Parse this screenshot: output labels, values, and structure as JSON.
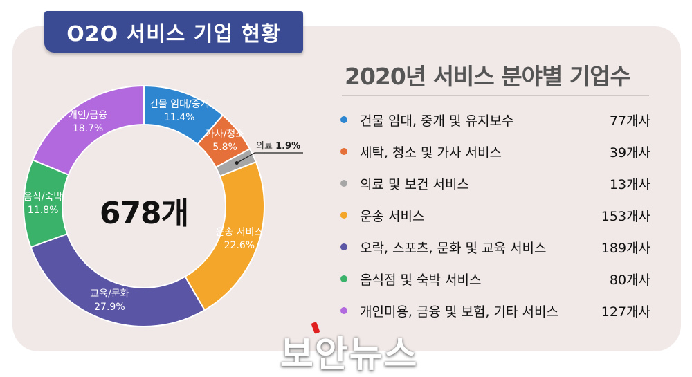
{
  "banner": {
    "title": "O2O 서비스 기업 현황"
  },
  "total": {
    "label": "678개"
  },
  "chart_data": {
    "type": "pie",
    "title": "2020년 서비스 분야별 기업수",
    "donut": true,
    "center_label": "678개",
    "slices": [
      {
        "short": "건물 임대/중개",
        "pct_label": "11.4%",
        "value": 77,
        "color": "#2e86d0",
        "name": "건물 임대, 중개 및 유지보수",
        "count_label": "77개사"
      },
      {
        "short": "가사/청소",
        "pct_label": "5.8%",
        "value": 39,
        "color": "#e6703a",
        "name": "세탁, 청소 및 가사 서비스",
        "count_label": "39개사"
      },
      {
        "short": "의료",
        "pct_label": "1.9%",
        "value": 13,
        "color": "#a6a6a6",
        "name": "의료 및 보건 서비스",
        "count_label": "13개사"
      },
      {
        "short": "운송 서비스",
        "pct_label": "22.6%",
        "value": 153,
        "color": "#f4a62a",
        "name": "운송 서비스",
        "count_label": "153개사"
      },
      {
        "short": "교육/문화",
        "pct_label": "27.9%",
        "value": 189,
        "color": "#5b55a5",
        "name": "오락, 스포츠, 문화 및 교육 서비스",
        "count_label": "189개사"
      },
      {
        "short": "음식/숙박",
        "pct_label": "11.8%",
        "value": 80,
        "color": "#3bb26a",
        "name": "음식점 및 숙박 서비스",
        "count_label": "80개사"
      },
      {
        "short": "개인/금융",
        "pct_label": "18.7%",
        "value": 127,
        "color": "#b169dd",
        "name": "개인미용, 금융 및 보험, 기타 서비스",
        "count_label": "127개사"
      }
    ]
  },
  "watermark": {
    "text": "보안뉴스"
  }
}
